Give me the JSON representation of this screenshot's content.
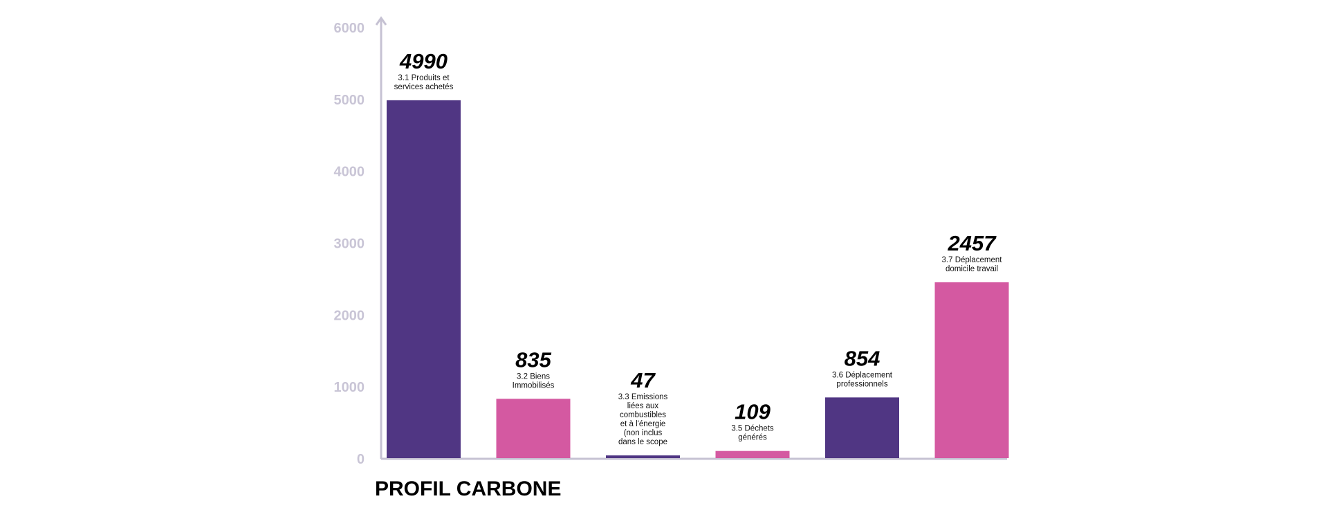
{
  "chart_data": {
    "type": "bar",
    "title": "PROFIL CARBONE",
    "xlabel": "",
    "ylabel": "",
    "ylim": [
      0,
      6000
    ],
    "yticks": [
      0,
      1000,
      2000,
      3000,
      4000,
      5000,
      6000
    ],
    "grid": false,
    "legend": "none",
    "categories": [
      [
        "3.1 Produits et",
        "services achetés"
      ],
      [
        "3.2 Biens",
        "Immobilisés"
      ],
      [
        "3.3 Emissions",
        "liées aux",
        "combustibles",
        "et à l'énergie",
        "(non inclus",
        "dans le scope"
      ],
      [
        "3.5 Déchets",
        "générés"
      ],
      [
        "3.6 Déplacement",
        "professionnels"
      ],
      [
        "3.7 Déplacement",
        "domicile travail"
      ]
    ],
    "values": [
      4990,
      835,
      47,
      109,
      854,
      2457
    ],
    "value_labels": [
      "4990",
      "835",
      "47",
      "109",
      "854",
      "2457"
    ],
    "colors": [
      "#503683",
      "#d459a1",
      "#503683",
      "#d459a1",
      "#503683",
      "#d459a1"
    ],
    "axis_color": "#c6c2d3",
    "tick_color": "#c9c5d6"
  }
}
